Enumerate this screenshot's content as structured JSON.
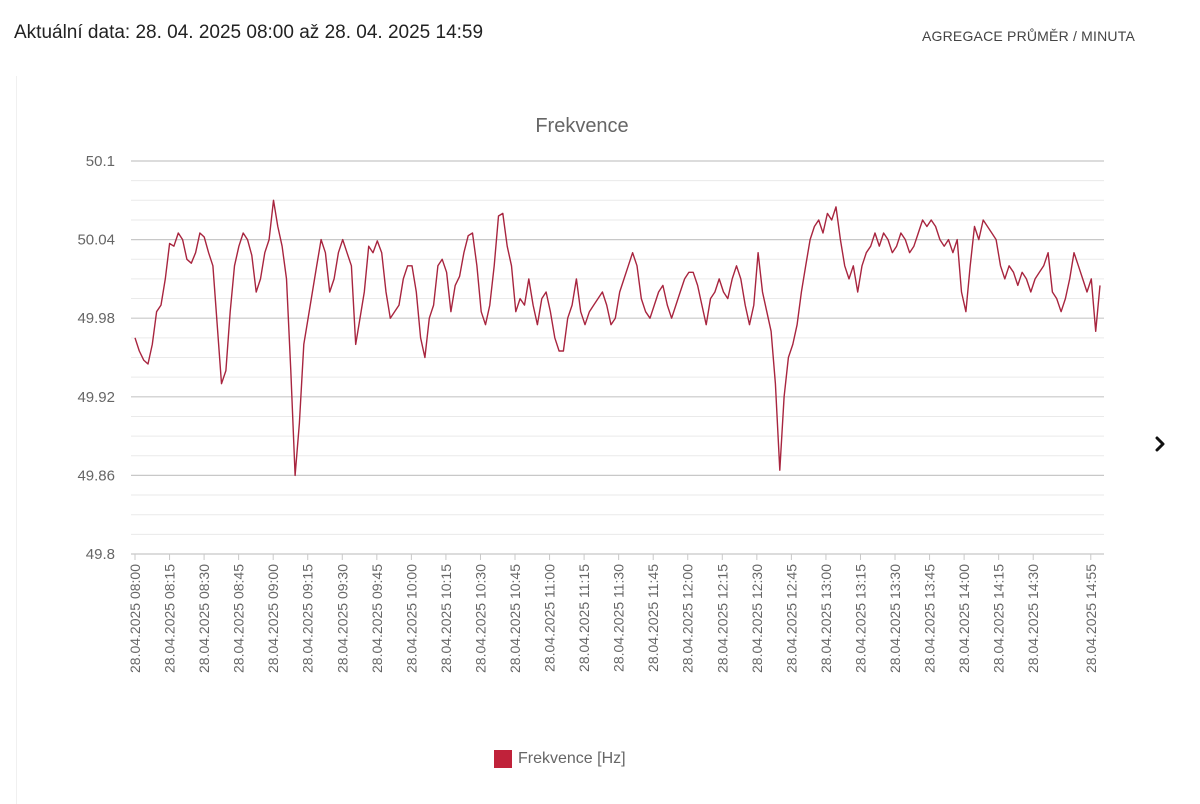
{
  "header": {
    "date_range": "Aktuální data: 28. 04. 2025 08:00 až 28. 04. 2025 14:59",
    "aggregation": "AGREGACE PRŮMĚR / MINUTA"
  },
  "navigation": {
    "next_icon": "chevron-right-icon"
  },
  "colors": {
    "series": "#a8253f",
    "legend_swatch": "#c0223a",
    "grid_major": "#c8c8c8",
    "grid_minor": "#eaeaea"
  },
  "chart_data": {
    "type": "line",
    "title": "Frekvence",
    "xlabel": "",
    "ylabel": "",
    "ylim": [
      49.8,
      50.1
    ],
    "yticks": [
      "50.1",
      "50.04",
      "49.98",
      "49.92",
      "49.86",
      "49.8"
    ],
    "grid": true,
    "legend_position": "bottom-center",
    "x_tick_labels": [
      "28.04.2025 08:00",
      "28.04.2025 08:15",
      "28.04.2025 08:30",
      "28.04.2025 08:45",
      "28.04.2025 09:00",
      "28.04.2025 09:15",
      "28.04.2025 09:30",
      "28.04.2025 09:45",
      "28.04.2025 10:00",
      "28.04.2025 10:15",
      "28.04.2025 10:30",
      "28.04.2025 10:45",
      "28.04.2025 11:00",
      "28.04.2025 11:15",
      "28.04.2025 11:30",
      "28.04.2025 11:45",
      "28.04.2025 12:00",
      "28.04.2025 12:15",
      "28.04.2025 12:30",
      "28.04.2025 12:45",
      "28.04.2025 13:00",
      "28.04.2025 13:15",
      "28.04.2025 13:30",
      "28.04.2025 13:45",
      "28.04.2025 14:00",
      "28.04.2025 14:15",
      "28.04.2025 14:30",
      "28.04.2025 14:55"
    ],
    "series": [
      {
        "name": "Frekvence [Hz]",
        "color": "#a8253f",
        "x_start": "28.04.2025 08:00",
        "x_end": "28.04.2025 14:59",
        "values": [
          49.965,
          49.955,
          49.948,
          49.945,
          49.96,
          49.985,
          49.99,
          50.01,
          50.037,
          50.035,
          50.045,
          50.04,
          50.025,
          50.022,
          50.03,
          50.045,
          50.042,
          50.03,
          50.02,
          49.975,
          49.93,
          49.94,
          49.985,
          50.02,
          50.035,
          50.045,
          50.04,
          50.028,
          50.0,
          50.01,
          50.03,
          50.04,
          50.07,
          50.05,
          50.035,
          50.01,
          49.94,
          49.86,
          49.9,
          49.96,
          49.98,
          50.0,
          50.02,
          50.04,
          50.03,
          50.0,
          50.01,
          50.03,
          50.04,
          50.03,
          50.02,
          49.96,
          49.98,
          50.0,
          50.035,
          50.03,
          50.039,
          50.03,
          50.0,
          49.98,
          49.985,
          49.99,
          50.01,
          50.02,
          50.02,
          50.0,
          49.965,
          49.95,
          49.98,
          49.99,
          50.02,
          50.025,
          50.015,
          49.985,
          50.005,
          50.012,
          50.03,
          50.043,
          50.045,
          50.02,
          49.985,
          49.975,
          49.99,
          50.02,
          50.058,
          50.06,
          50.035,
          50.02,
          49.985,
          49.995,
          49.99,
          50.01,
          49.99,
          49.975,
          49.995,
          50.0,
          49.985,
          49.965,
          49.955,
          49.955,
          49.98,
          49.99,
          50.01,
          49.985,
          49.975,
          49.985,
          49.99,
          49.995,
          50.0,
          49.99,
          49.975,
          49.98,
          50.0,
          50.01,
          50.02,
          50.03,
          50.02,
          49.995,
          49.985,
          49.98,
          49.99,
          50.0,
          50.005,
          49.99,
          49.98,
          49.99,
          50.0,
          50.01,
          50.015,
          50.015,
          50.005,
          49.99,
          49.975,
          49.995,
          50.0,
          50.01,
          50.0,
          49.995,
          50.01,
          50.02,
          50.01,
          49.99,
          49.975,
          49.99,
          50.03,
          50.0,
          49.985,
          49.97,
          49.93,
          49.864,
          49.92,
          49.95,
          49.96,
          49.975,
          50.0,
          50.02,
          50.04,
          50.05,
          50.055,
          50.045,
          50.06,
          50.055,
          50.065,
          50.04,
          50.02,
          50.01,
          50.02,
          50.0,
          50.02,
          50.03,
          50.035,
          50.045,
          50.035,
          50.045,
          50.04,
          50.03,
          50.035,
          50.045,
          50.04,
          50.03,
          50.035,
          50.045,
          50.055,
          50.05,
          50.055,
          50.05,
          50.04,
          50.035,
          50.04,
          50.03,
          50.04,
          50.0,
          49.985,
          50.02,
          50.05,
          50.04,
          50.055,
          50.05,
          50.045,
          50.04,
          50.02,
          50.01,
          50.02,
          50.015,
          50.005,
          50.015,
          50.01,
          50.0,
          50.01,
          50.015,
          50.02,
          50.03,
          50.0,
          49.995,
          49.985,
          49.995,
          50.01,
          50.03,
          50.02,
          50.01,
          50.0,
          50.01,
          49.97,
          50.005
        ]
      }
    ]
  }
}
